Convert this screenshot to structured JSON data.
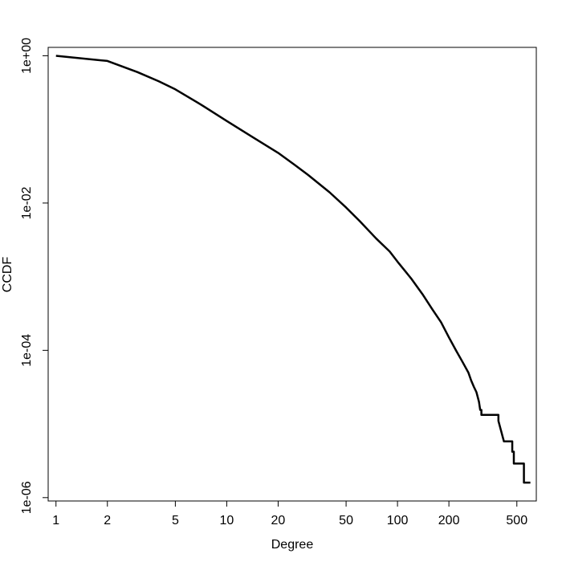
{
  "chart_data": {
    "type": "line",
    "xlabel": "Degree",
    "ylabel": "CCDF",
    "x_scale": "log",
    "y_scale": "log",
    "xlim": [
      0.9,
      650
    ],
    "ylim": [
      9e-07,
      1.3
    ],
    "grid": false,
    "x_ticks": [
      {
        "value": 1,
        "label": "1"
      },
      {
        "value": 2,
        "label": "2"
      },
      {
        "value": 5,
        "label": "5"
      },
      {
        "value": 10,
        "label": "10"
      },
      {
        "value": 20,
        "label": "20"
      },
      {
        "value": 50,
        "label": "50"
      },
      {
        "value": 100,
        "label": "100"
      },
      {
        "value": 200,
        "label": "200"
      },
      {
        "value": 500,
        "label": "500"
      }
    ],
    "y_ticks": [
      {
        "value": 1,
        "label": "1e+00"
      },
      {
        "value": 0.01,
        "label": "1e-02"
      },
      {
        "value": 0.0001,
        "label": "1e-04"
      },
      {
        "value": 1e-06,
        "label": "1e-06"
      }
    ],
    "series": [
      {
        "x": [
          1,
          2,
          3,
          4,
          5,
          7,
          10,
          14,
          20,
          25,
          30,
          40,
          50,
          60,
          75,
          90,
          100,
          120,
          140,
          160,
          180,
          200,
          220,
          240,
          260,
          270,
          280,
          290,
          300,
          305,
          310,
          310,
          320,
          340,
          350,
          360,
          370,
          390,
          390,
          420,
          470,
          470,
          480,
          480,
          490,
          520,
          550,
          550,
          600
        ],
        "y": [
          1,
          0.85,
          0.6,
          0.45,
          0.35,
          0.22,
          0.13,
          0.08,
          0.048,
          0.033,
          0.024,
          0.014,
          0.0087,
          0.0057,
          0.0033,
          0.0022,
          0.0016,
          0.00095,
          0.00058,
          0.00036,
          0.00024,
          0.00015,
          0.0001,
          7e-05,
          5e-05,
          3.9e-05,
          3.2e-05,
          2.7e-05,
          2e-05,
          1.55e-05,
          1.55e-05,
          1.33e-05,
          1.33e-05,
          1.33e-05,
          1.33e-05,
          1.33e-05,
          1.33e-05,
          1.33e-05,
          1.1e-05,
          5.8e-06,
          5.8e-06,
          4.2e-06,
          4.2e-06,
          2.9e-06,
          2.9e-06,
          2.9e-06,
          2.9e-06,
          1.6e-06,
          1.6e-06
        ]
      }
    ]
  }
}
